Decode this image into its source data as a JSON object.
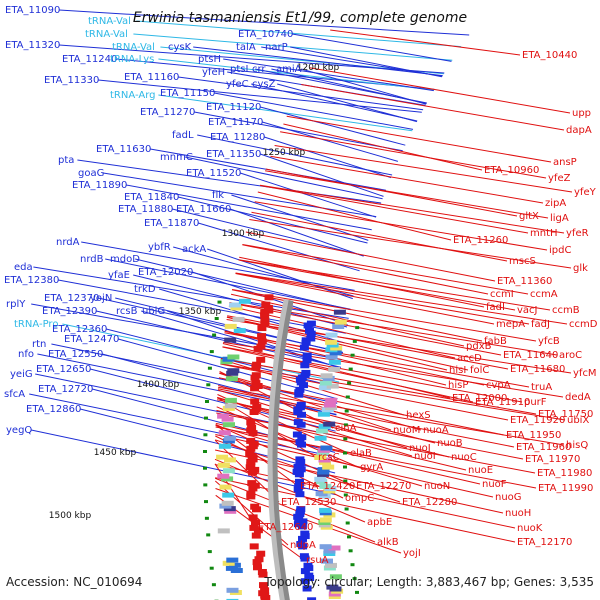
{
  "title": "Erwinia tasmaniensis Et1/99, complete genome",
  "footer": {
    "accession": "Accession: NC_010694",
    "summary": "Topology: circular; Length: 3,883,467 bp; Genes: 3,535"
  },
  "colors": {
    "left_label": "#1f2fd6",
    "rna_label": "#2eb8e6",
    "right_label": "#e01010",
    "ring": "#8a8a8a",
    "tick": "#118811"
  },
  "kbp_ticks": [
    "1200 kbp",
    "1250 kbp",
    "1300 kbp",
    "1350 kbp",
    "1400 kbp",
    "1450 kbp",
    "1500 kbp"
  ],
  "left_labels": [
    {
      "text": "ETA_11090",
      "kind": "gene"
    },
    {
      "text": "tRNA-Val",
      "kind": "rna"
    },
    {
      "text": "tRNA-Val",
      "kind": "rna"
    },
    {
      "text": "tRNA-Val",
      "kind": "rna"
    },
    {
      "text": "ETA_10740",
      "kind": "gene"
    },
    {
      "text": "ETA_11320",
      "kind": "gene"
    },
    {
      "text": "cysK",
      "kind": "gene"
    },
    {
      "text": "talA",
      "kind": "gene"
    },
    {
      "text": "narP",
      "kind": "gene"
    },
    {
      "text": "ETA_11240",
      "kind": "gene"
    },
    {
      "text": "tRNA-Lys",
      "kind": "rna"
    },
    {
      "text": "ptsH",
      "kind": "gene"
    },
    {
      "text": "ETA_11330",
      "kind": "gene"
    },
    {
      "text": "ETA_11160",
      "kind": "gene"
    },
    {
      "text": "yfeH",
      "kind": "gene"
    },
    {
      "text": "ptsI",
      "kind": "gene"
    },
    {
      "text": "crr",
      "kind": "gene"
    },
    {
      "text": "amiA",
      "kind": "gene"
    },
    {
      "text": "tRNA-Arg",
      "kind": "rna"
    },
    {
      "text": "ETA_11150",
      "kind": "gene"
    },
    {
      "text": "yfeC",
      "kind": "gene"
    },
    {
      "text": "cysZ",
      "kind": "gene"
    },
    {
      "text": "ETA_11120",
      "kind": "gene"
    },
    {
      "text": "ETA_11270",
      "kind": "gene"
    },
    {
      "text": "ETA_11170",
      "kind": "gene"
    },
    {
      "text": "fadL",
      "kind": "gene"
    },
    {
      "text": "ETA_11280",
      "kind": "gene"
    },
    {
      "text": "ETA_11630",
      "kind": "gene"
    },
    {
      "text": "mnmC",
      "kind": "gene"
    },
    {
      "text": "ETA_11350",
      "kind": "gene"
    },
    {
      "text": "pta",
      "kind": "gene"
    },
    {
      "text": "goaG",
      "kind": "gene"
    },
    {
      "text": "ETA_11520",
      "kind": "gene"
    },
    {
      "text": "ETA_11890",
      "kind": "gene"
    },
    {
      "text": "flk",
      "kind": "gene"
    },
    {
      "text": "ETA_11840",
      "kind": "gene"
    },
    {
      "text": "ETA_11880",
      "kind": "gene"
    },
    {
      "text": "ETA_11660",
      "kind": "gene"
    },
    {
      "text": "ETA_11870",
      "kind": "gene"
    },
    {
      "text": "nrdA",
      "kind": "gene"
    },
    {
      "text": "ybfR",
      "kind": "gene"
    },
    {
      "text": "ackA",
      "kind": "gene"
    },
    {
      "text": "nrdB",
      "kind": "gene"
    },
    {
      "text": "mdoD",
      "kind": "gene"
    },
    {
      "text": "eda",
      "kind": "gene"
    },
    {
      "text": "yfaE",
      "kind": "gene"
    },
    {
      "text": "ETA_12020",
      "kind": "gene"
    },
    {
      "text": "ETA_12380",
      "kind": "gene"
    },
    {
      "text": "trkD",
      "kind": "gene"
    },
    {
      "text": "ETA_12370",
      "kind": "gene"
    },
    {
      "text": "yojN",
      "kind": "gene"
    },
    {
      "text": "rplY",
      "kind": "gene"
    },
    {
      "text": "ETA_12390",
      "kind": "gene"
    },
    {
      "text": "rcsB",
      "kind": "gene"
    },
    {
      "text": "ubiG",
      "kind": "gene"
    },
    {
      "text": "tRNA-Pro",
      "kind": "rna"
    },
    {
      "text": "ETA_12360",
      "kind": "gene"
    },
    {
      "text": "rtn",
      "kind": "gene"
    },
    {
      "text": "ETA_12470",
      "kind": "gene"
    },
    {
      "text": "nfo",
      "kind": "gene"
    },
    {
      "text": "ETA_12550",
      "kind": "gene"
    },
    {
      "text": "yeiG",
      "kind": "gene"
    },
    {
      "text": "ETA_12650",
      "kind": "gene"
    },
    {
      "text": "sfcA",
      "kind": "gene"
    },
    {
      "text": "ETA_12720",
      "kind": "gene"
    },
    {
      "text": "ETA_12860",
      "kind": "gene"
    },
    {
      "text": "yegQ",
      "kind": "gene"
    }
  ],
  "right_labels": [
    {
      "text": "ETA_10440"
    },
    {
      "text": "upp"
    },
    {
      "text": "dapA"
    },
    {
      "text": "ansP"
    },
    {
      "text": "ETA_10960"
    },
    {
      "text": "yfeZ"
    },
    {
      "text": "yfeY"
    },
    {
      "text": "zipA"
    },
    {
      "text": "gltX"
    },
    {
      "text": "ligA"
    },
    {
      "text": "mntH"
    },
    {
      "text": "yfeR"
    },
    {
      "text": "ETA_11260"
    },
    {
      "text": "ipdC"
    },
    {
      "text": "glk"
    },
    {
      "text": "mscS"
    },
    {
      "text": "ETA_11360"
    },
    {
      "text": "ccmI"
    },
    {
      "text": "ccmA"
    },
    {
      "text": "fadI"
    },
    {
      "text": "vacJ"
    },
    {
      "text": "ccmB"
    },
    {
      "text": "mepA"
    },
    {
      "text": "fadJ"
    },
    {
      "text": "ccmD"
    },
    {
      "text": "fabB"
    },
    {
      "text": "yfcB"
    },
    {
      "text": "pdxB"
    },
    {
      "text": "accD"
    },
    {
      "text": "ETA_11640"
    },
    {
      "text": "aroC"
    },
    {
      "text": "hisI"
    },
    {
      "text": "folC"
    },
    {
      "text": "ETA_11680"
    },
    {
      "text": "yfcM"
    },
    {
      "text": "hisP"
    },
    {
      "text": "cvpA"
    },
    {
      "text": "truA"
    },
    {
      "text": "ETA_12000"
    },
    {
      "text": "dedA"
    },
    {
      "text": "ETA_11910"
    },
    {
      "text": "purF"
    },
    {
      "text": "ETA_11750"
    },
    {
      "text": "hexS"
    },
    {
      "text": "ETA_11920"
    },
    {
      "text": "ubiX"
    },
    {
      "text": "cinA"
    },
    {
      "text": "nuoM"
    },
    {
      "text": "nuoA"
    },
    {
      "text": "ETA_11950"
    },
    {
      "text": "nuoB"
    },
    {
      "text": "hisQ"
    },
    {
      "text": "nuoJ"
    },
    {
      "text": "ETA_11960"
    },
    {
      "text": "elaB"
    },
    {
      "text": "nuoI"
    },
    {
      "text": "nuoC"
    },
    {
      "text": "ETA_11970"
    },
    {
      "text": "rcsC"
    },
    {
      "text": "nuoE"
    },
    {
      "text": "ETA_11980"
    },
    {
      "text": "gyrA"
    },
    {
      "text": "nuoN"
    },
    {
      "text": "nuoF"
    },
    {
      "text": "ETA_11990"
    },
    {
      "text": "ETA_12420"
    },
    {
      "text": "ETA_12270"
    },
    {
      "text": "ETA_12530"
    },
    {
      "text": "ompC"
    },
    {
      "text": "ETA_12280"
    },
    {
      "text": "nuoG"
    },
    {
      "text": "apbE"
    },
    {
      "text": "nuoH"
    },
    {
      "text": "ETA_12640"
    },
    {
      "text": "nuoK"
    },
    {
      "text": "alkB"
    },
    {
      "text": "ndpA"
    },
    {
      "text": "ETA_12170"
    },
    {
      "text": "yojI"
    },
    {
      "text": "rsuA"
    }
  ]
}
